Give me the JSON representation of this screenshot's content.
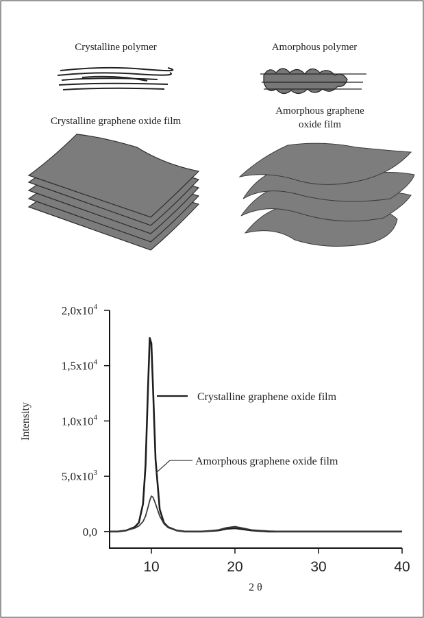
{
  "illustrations": {
    "crystalline_polymer": "Crystalline polymer",
    "amorphous_polymer": "Amorphous polymer",
    "crystalline_film": [
      "Crystalline graphene oxide film"
    ],
    "amorphous_film": [
      "Amorphous graphene",
      "oxide film"
    ]
  },
  "chart_data": {
    "type": "line",
    "x_label": "2 θ",
    "y_label": "Intensity",
    "x": [
      5,
      6,
      7,
      8,
      8.5,
      9,
      9.3,
      9.6,
      9.8,
      10,
      10.2,
      10.5,
      11,
      11.5,
      12,
      13,
      14,
      16,
      18,
      19,
      20,
      21,
      22,
      24,
      26,
      30,
      35,
      40
    ],
    "series": [
      {
        "name": "Crystalline graphene oxide film",
        "color": "#1e1e1e",
        "values": [
          0,
          0,
          100,
          400,
          800,
          2500,
          6000,
          13000,
          17500,
          17000,
          13000,
          6500,
          2000,
          800,
          400,
          100,
          0,
          0,
          100,
          250,
          300,
          200,
          100,
          0,
          0,
          0,
          0,
          0
        ]
      },
      {
        "name": "Amorphous graphene oxide film",
        "color": "#3a3a3a",
        "values": [
          0,
          0,
          100,
          300,
          500,
          900,
          1400,
          2200,
          2800,
          3200,
          3100,
          2500,
          1400,
          700,
          350,
          100,
          0,
          0,
          150,
          350,
          450,
          300,
          150,
          50,
          0,
          0,
          0,
          0
        ]
      }
    ],
    "xlim": [
      5,
      40
    ],
    "ylim": [
      -1500,
      20000
    ],
    "xticks": [
      10,
      20,
      30,
      40
    ],
    "yticks": [
      {
        "value": 0,
        "label": "0,0"
      },
      {
        "value": 5000,
        "label": "5,0x10",
        "exponent": "3"
      },
      {
        "value": 10000,
        "label": "1,0x10",
        "exponent": "4"
      },
      {
        "value": 15000,
        "label": "1,5x10",
        "exponent": "4"
      },
      {
        "value": 20000,
        "label": "2,0x10",
        "exponent": "4"
      }
    ]
  }
}
